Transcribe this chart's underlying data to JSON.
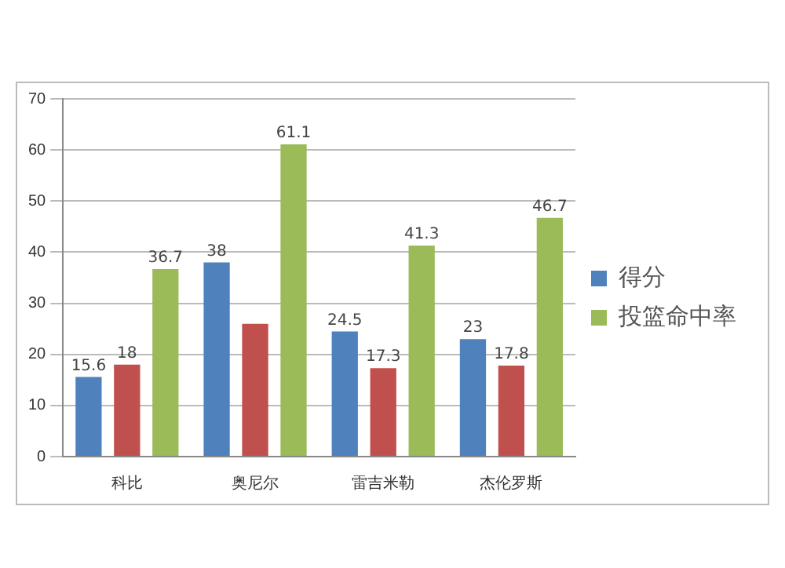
{
  "chart_data": {
    "type": "bar",
    "categories": [
      "科比",
      "奥尼尔",
      "雷吉米勒",
      "杰伦罗斯"
    ],
    "series": [
      {
        "name": "得分",
        "color": "#4f81bd",
        "values": [
          15.6,
          38,
          24.5,
          23
        ],
        "value_labels": [
          "15.6",
          "38",
          "24.5",
          "23"
        ]
      },
      {
        "color": "#c0504d",
        "values": [
          18,
          26,
          17.3,
          17.8
        ],
        "value_labels": [
          "18",
          null,
          "17.3",
          "17.8"
        ]
      },
      {
        "name": "投篮命中率",
        "color": "#9bbb59",
        "values": [
          36.7,
          61.1,
          41.3,
          46.7
        ],
        "value_labels": [
          "36.7",
          "61.1",
          "41.3",
          "46.7"
        ]
      }
    ],
    "ylim": [
      0,
      70
    ],
    "yticks": [
      0,
      10,
      20,
      30,
      40,
      50,
      60,
      70
    ],
    "grid": "y",
    "legend": "right"
  }
}
